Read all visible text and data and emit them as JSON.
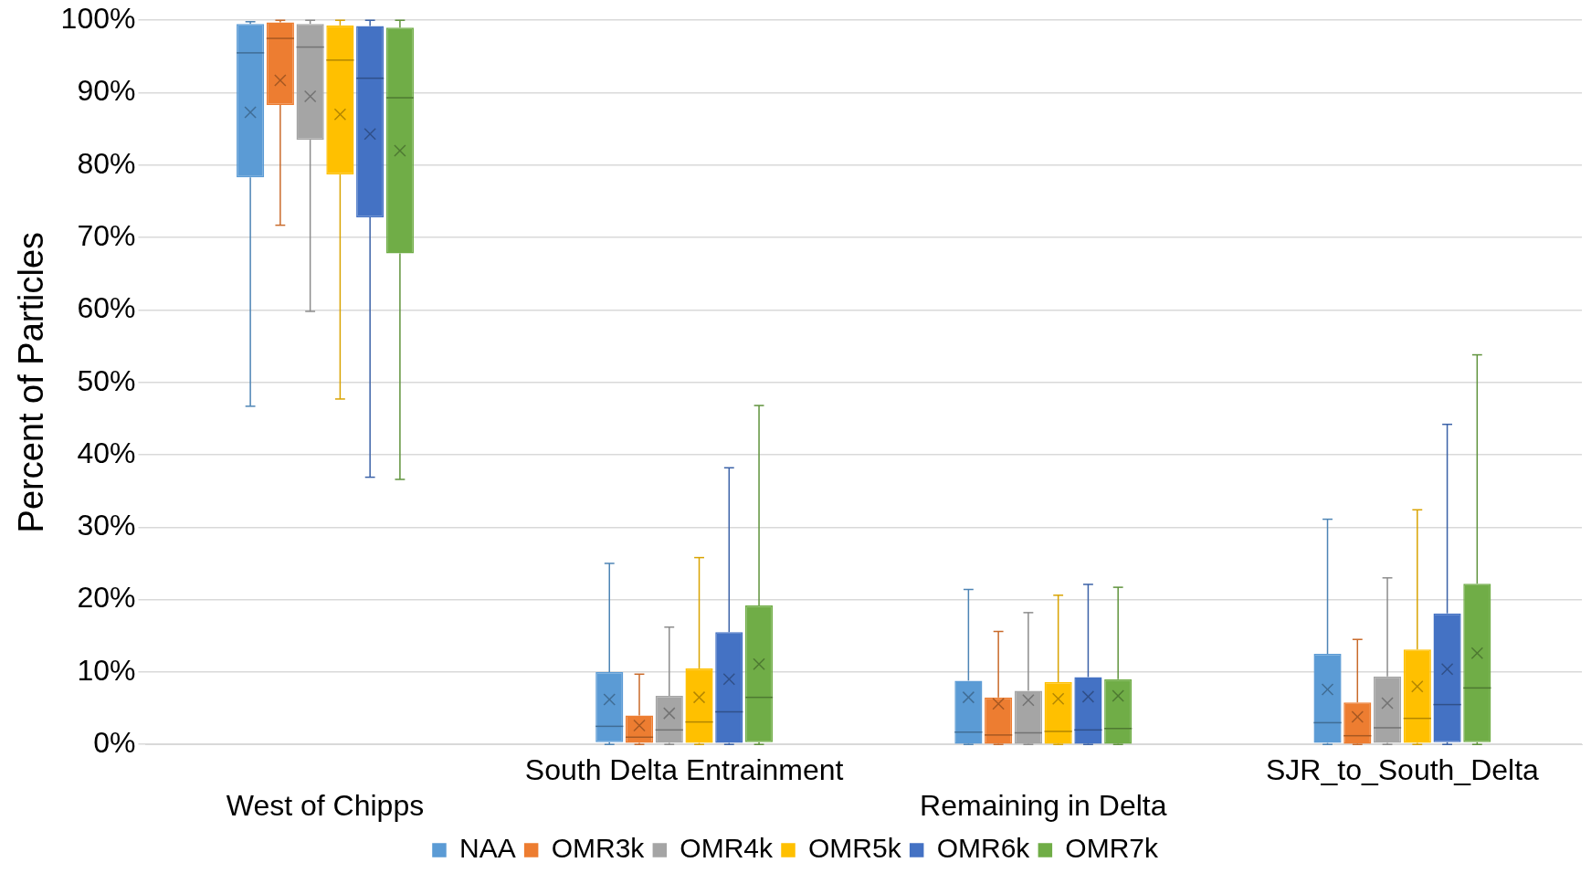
{
  "chart_data": {
    "type": "box",
    "ylabel": "Percent of Particles",
    "categories": [
      "West of Chipps",
      "South Delta Entrainment",
      "Remaining in Delta",
      "SJR_to_South_Delta"
    ],
    "ylim": [
      0,
      100
    ],
    "yticks": [
      {
        "value": 0,
        "label": "0%"
      },
      {
        "value": 10,
        "label": "10%"
      },
      {
        "value": 20,
        "label": "20%"
      },
      {
        "value": 30,
        "label": "30%"
      },
      {
        "value": 40,
        "label": "40%"
      },
      {
        "value": 50,
        "label": "50%"
      },
      {
        "value": 60,
        "label": "60%"
      },
      {
        "value": 70,
        "label": "70%"
      },
      {
        "value": 80,
        "label": "80%"
      },
      {
        "value": 90,
        "label": "90%"
      },
      {
        "value": 100,
        "label": "100%"
      }
    ],
    "grid": "y",
    "legend": "bottom",
    "series": [
      {
        "name": "NAA",
        "color": "#5b9bd5",
        "boxes": [
          {
            "low": 46.7,
            "q1": 78.3,
            "median": 95.5,
            "q3": 99.5,
            "high": 99.8,
            "mean": 87.3
          },
          {
            "low": 0,
            "q1": 0.3,
            "median": 2.5,
            "q3": 10,
            "high": 25,
            "mean": 6.2
          },
          {
            "low": 0,
            "q1": 0.1,
            "median": 1.7,
            "q3": 8.8,
            "high": 21.4,
            "mean": 6.5
          },
          {
            "low": 0,
            "q1": 0.2,
            "median": 3,
            "q3": 12.5,
            "high": 31.1,
            "mean": 7.6
          }
        ]
      },
      {
        "name": "OMR3k",
        "color": "#ed7d31",
        "boxes": [
          {
            "low": 71.7,
            "q1": 88.3,
            "median": 97.5,
            "q3": 99.7,
            "high": 100,
            "mean": 91.7
          },
          {
            "low": 0,
            "q1": 0.2,
            "median": 1,
            "q3": 4,
            "high": 9.7,
            "mean": 2.6
          },
          {
            "low": 0,
            "q1": 0.1,
            "median": 1.3,
            "q3": 6.5,
            "high": 15.6,
            "mean": 5.6
          },
          {
            "low": 0,
            "q1": 0.1,
            "median": 1.2,
            "q3": 5.8,
            "high": 14.5,
            "mean": 3.8
          }
        ]
      },
      {
        "name": "OMR4k",
        "color": "#a5a5a5",
        "boxes": [
          {
            "low": 59.8,
            "q1": 83.5,
            "median": 96.3,
            "q3": 99.5,
            "high": 100,
            "mean": 89.5
          },
          {
            "low": 0,
            "q1": 0.2,
            "median": 2,
            "q3": 6.7,
            "high": 16.2,
            "mean": 4.3
          },
          {
            "low": 0,
            "q1": 0.1,
            "median": 1.6,
            "q3": 7.4,
            "high": 18.2,
            "mean": 6.1
          },
          {
            "low": 0,
            "q1": 0.2,
            "median": 2.3,
            "q3": 9.4,
            "high": 23,
            "mean": 5.7
          }
        ]
      },
      {
        "name": "OMR5k",
        "color": "#ffc000",
        "boxes": [
          {
            "low": 47.7,
            "q1": 78.7,
            "median": 94.5,
            "q3": 99.3,
            "high": 100,
            "mean": 87
          },
          {
            "low": 0,
            "q1": 0.2,
            "median": 3.1,
            "q3": 10.5,
            "high": 25.8,
            "mean": 6.5
          },
          {
            "low": 0,
            "q1": 0.1,
            "median": 1.8,
            "q3": 8.6,
            "high": 20.6,
            "mean": 6.3
          },
          {
            "low": 0,
            "q1": 0.2,
            "median": 3.6,
            "q3": 13.1,
            "high": 32.4,
            "mean": 8
          }
        ]
      },
      {
        "name": "OMR6k",
        "color": "#4472c4",
        "boxes": [
          {
            "low": 36.9,
            "q1": 72.8,
            "median": 92,
            "q3": 99.2,
            "high": 100,
            "mean": 84.3
          },
          {
            "low": 0,
            "q1": 0.2,
            "median": 4.5,
            "q3": 15.5,
            "high": 38.2,
            "mean": 9
          },
          {
            "low": 0,
            "q1": 0.1,
            "median": 2,
            "q3": 9.3,
            "high": 22.1,
            "mean": 6.6
          },
          {
            "low": 0,
            "q1": 0.3,
            "median": 5.5,
            "q3": 18.1,
            "high": 44.2,
            "mean": 10.4
          }
        ]
      },
      {
        "name": "OMR7k",
        "color": "#70ad47",
        "boxes": [
          {
            "low": 36.6,
            "q1": 67.8,
            "median": 89.3,
            "q3": 99,
            "high": 100,
            "mean": 82
          },
          {
            "low": 0,
            "q1": 0.3,
            "median": 6.5,
            "q3": 19.2,
            "high": 46.8,
            "mean": 11.1
          },
          {
            "low": 0,
            "q1": 0.1,
            "median": 2.2,
            "q3": 9,
            "high": 21.7,
            "mean": 6.7
          },
          {
            "low": 0,
            "q1": 0.3,
            "median": 7.8,
            "q3": 22.2,
            "high": 53.8,
            "mean": 12.6
          }
        ]
      }
    ]
  }
}
